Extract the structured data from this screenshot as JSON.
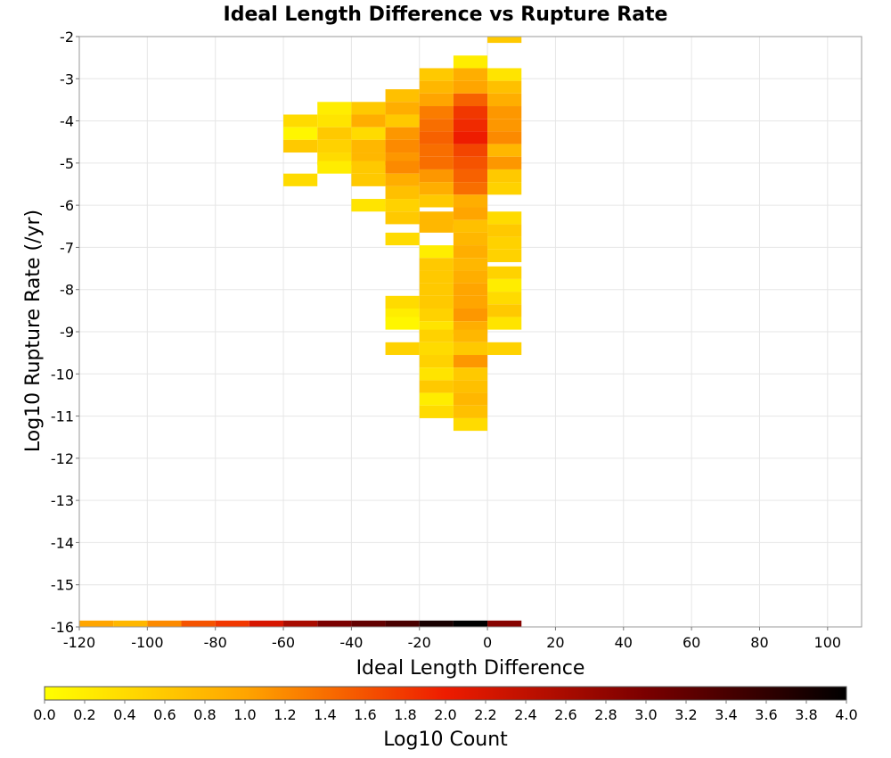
{
  "chart_data": {
    "type": "heatmap",
    "title": "Ideal Length Difference vs Rupture Rate",
    "xlabel": "Ideal Length Difference",
    "ylabel": "Log10 Rupture Rate (/yr)",
    "xlim": [
      -120,
      110
    ],
    "ylim": [
      -16,
      -2
    ],
    "xticks": [
      "-120",
      "-100",
      "-80",
      "-60",
      "-40",
      "-20",
      "0",
      "20",
      "40",
      "60",
      "80",
      "100"
    ],
    "yticks": [
      "-2",
      "-3",
      "-4",
      "-5",
      "-6",
      "-7",
      "-8",
      "-9",
      "-10",
      "-11",
      "-12",
      "-13",
      "-14",
      "-15",
      "-16"
    ],
    "x_bin_width": 10,
    "y_bin_height": 0.3,
    "grid": true,
    "colorbar": {
      "label": "Log10 Count",
      "min": 0.0,
      "max": 4.0,
      "ticks": [
        "0.0",
        "0.2",
        "0.4",
        "0.6",
        "0.8",
        "1.0",
        "1.2",
        "1.4",
        "1.6",
        "1.8",
        "2.0",
        "2.2",
        "2.4",
        "2.6",
        "2.8",
        "3.0",
        "3.2",
        "3.4",
        "3.6",
        "3.8",
        "4.0"
      ]
    },
    "cells": [
      {
        "x": 5,
        "y": -2.0,
        "v": 0.6
      },
      {
        "x": -5,
        "y": -2.6,
        "v": 0.2
      },
      {
        "x": -15,
        "y": -2.9,
        "v": 0.6
      },
      {
        "x": -5,
        "y": -2.9,
        "v": 0.9
      },
      {
        "x": 5,
        "y": -2.9,
        "v": 0.3
      },
      {
        "x": -25,
        "y": -3.4,
        "v": 0.7
      },
      {
        "x": -15,
        "y": -3.2,
        "v": 0.8
      },
      {
        "x": -5,
        "y": -3.2,
        "v": 1.0
      },
      {
        "x": 5,
        "y": -3.2,
        "v": 0.7
      },
      {
        "x": -45,
        "y": -3.7,
        "v": 0.2
      },
      {
        "x": -35,
        "y": -3.7,
        "v": 0.6
      },
      {
        "x": -25,
        "y": -3.7,
        "v": 0.9
      },
      {
        "x": -15,
        "y": -3.5,
        "v": 1.0
      },
      {
        "x": -5,
        "y": -3.5,
        "v": 1.5
      },
      {
        "x": 5,
        "y": -3.5,
        "v": 0.9
      },
      {
        "x": -55,
        "y": -4.0,
        "v": 0.4
      },
      {
        "x": -45,
        "y": -4.0,
        "v": 0.3
      },
      {
        "x": -35,
        "y": -4.0,
        "v": 0.9
      },
      {
        "x": -25,
        "y": -4.0,
        "v": 0.6
      },
      {
        "x": -15,
        "y": -3.8,
        "v": 1.3
      },
      {
        "x": -5,
        "y": -3.8,
        "v": 1.8
      },
      {
        "x": 5,
        "y": -3.8,
        "v": 1.1
      },
      {
        "x": -55,
        "y": -4.3,
        "v": 0.1
      },
      {
        "x": -45,
        "y": -4.3,
        "v": 0.6
      },
      {
        "x": -35,
        "y": -4.3,
        "v": 0.4
      },
      {
        "x": -25,
        "y": -4.3,
        "v": 1.1
      },
      {
        "x": -15,
        "y": -4.1,
        "v": 1.4
      },
      {
        "x": -5,
        "y": -4.1,
        "v": 1.9
      },
      {
        "x": 5,
        "y": -4.1,
        "v": 1.1
      },
      {
        "x": -55,
        "y": -4.6,
        "v": 0.6
      },
      {
        "x": -45,
        "y": -4.6,
        "v": 0.5
      },
      {
        "x": -35,
        "y": -4.6,
        "v": 0.8
      },
      {
        "x": -25,
        "y": -4.6,
        "v": 1.2
      },
      {
        "x": -15,
        "y": -4.4,
        "v": 1.5
      },
      {
        "x": -5,
        "y": -4.4,
        "v": 2.0
      },
      {
        "x": 5,
        "y": -4.4,
        "v": 1.2
      },
      {
        "x": -45,
        "y": -4.9,
        "v": 0.4
      },
      {
        "x": -35,
        "y": -4.9,
        "v": 0.8
      },
      {
        "x": -25,
        "y": -4.9,
        "v": 1.1
      },
      {
        "x": -15,
        "y": -4.7,
        "v": 1.4
      },
      {
        "x": -5,
        "y": -4.7,
        "v": 1.7
      },
      {
        "x": 5,
        "y": -4.7,
        "v": 0.8
      },
      {
        "x": -45,
        "y": -5.1,
        "v": 0.2
      },
      {
        "x": -35,
        "y": -5.1,
        "v": 0.6
      },
      {
        "x": -25,
        "y": -5.1,
        "v": 1.2
      },
      {
        "x": -15,
        "y": -5.0,
        "v": 1.4
      },
      {
        "x": -5,
        "y": -5.0,
        "v": 1.6
      },
      {
        "x": 5,
        "y": -5.0,
        "v": 1.1
      },
      {
        "x": -55,
        "y": -5.4,
        "v": 0.4
      },
      {
        "x": -35,
        "y": -5.4,
        "v": 0.6
      },
      {
        "x": -25,
        "y": -5.4,
        "v": 0.9
      },
      {
        "x": -15,
        "y": -5.3,
        "v": 1.1
      },
      {
        "x": -5,
        "y": -5.3,
        "v": 1.5
      },
      {
        "x": 5,
        "y": -5.3,
        "v": 0.6
      },
      {
        "x": -25,
        "y": -5.7,
        "v": 0.7
      },
      {
        "x": -15,
        "y": -5.6,
        "v": 0.9
      },
      {
        "x": -5,
        "y": -5.6,
        "v": 1.4
      },
      {
        "x": 5,
        "y": -5.6,
        "v": 0.5
      },
      {
        "x": -35,
        "y": -6.0,
        "v": 0.3
      },
      {
        "x": -25,
        "y": -6.0,
        "v": 0.5
      },
      {
        "x": -15,
        "y": -5.9,
        "v": 0.6
      },
      {
        "x": -5,
        "y": -5.9,
        "v": 0.9
      },
      {
        "x": 5,
        "y": -6.3,
        "v": 0.4
      },
      {
        "x": -25,
        "y": -6.3,
        "v": 0.6
      },
      {
        "x": -15,
        "y": -6.3,
        "v": 0.8
      },
      {
        "x": -5,
        "y": -6.2,
        "v": 1.0
      },
      {
        "x": -15,
        "y": -6.5,
        "v": 0.8
      },
      {
        "x": -5,
        "y": -6.5,
        "v": 0.7
      },
      {
        "x": 5,
        "y": -6.6,
        "v": 0.6
      },
      {
        "x": -25,
        "y": -6.8,
        "v": 0.4
      },
      {
        "x": -5,
        "y": -6.8,
        "v": 0.8
      },
      {
        "x": -15,
        "y": -7.1,
        "v": 0.2
      },
      {
        "x": -5,
        "y": -7.1,
        "v": 0.9
      },
      {
        "x": 5,
        "y": -6.9,
        "v": 0.5
      },
      {
        "x": 5,
        "y": -7.2,
        "v": 0.5
      },
      {
        "x": -15,
        "y": -7.4,
        "v": 0.6
      },
      {
        "x": -5,
        "y": -7.4,
        "v": 0.8
      },
      {
        "x": 5,
        "y": -7.6,
        "v": 0.5
      },
      {
        "x": -15,
        "y": -7.7,
        "v": 0.6
      },
      {
        "x": -5,
        "y": -7.7,
        "v": 0.9
      },
      {
        "x": -15,
        "y": -8.0,
        "v": 0.6
      },
      {
        "x": -5,
        "y": -8.0,
        "v": 1.0
      },
      {
        "x": 5,
        "y": -7.9,
        "v": 0.2
      },
      {
        "x": 5,
        "y": -8.2,
        "v": 0.4
      },
      {
        "x": -25,
        "y": -8.3,
        "v": 0.4
      },
      {
        "x": -15,
        "y": -8.3,
        "v": 0.6
      },
      {
        "x": -5,
        "y": -8.3,
        "v": 1.0
      },
      {
        "x": -25,
        "y": -8.6,
        "v": 0.2
      },
      {
        "x": -15,
        "y": -8.6,
        "v": 0.5
      },
      {
        "x": -5,
        "y": -8.6,
        "v": 1.1
      },
      {
        "x": 5,
        "y": -8.5,
        "v": 0.6
      },
      {
        "x": -25,
        "y": -8.8,
        "v": 0.1
      },
      {
        "x": -15,
        "y": -8.9,
        "v": 0.3
      },
      {
        "x": -5,
        "y": -8.9,
        "v": 0.9
      },
      {
        "x": 5,
        "y": -8.8,
        "v": 0.3
      },
      {
        "x": -15,
        "y": -9.1,
        "v": 0.5
      },
      {
        "x": -5,
        "y": -9.1,
        "v": 0.8
      },
      {
        "x": -25,
        "y": -9.4,
        "v": 0.5
      },
      {
        "x": -15,
        "y": -9.4,
        "v": 0.4
      },
      {
        "x": -5,
        "y": -9.4,
        "v": 0.6
      },
      {
        "x": 5,
        "y": -9.4,
        "v": 0.5
      },
      {
        "x": -15,
        "y": -9.7,
        "v": 0.5
      },
      {
        "x": -5,
        "y": -9.7,
        "v": 1.1
      },
      {
        "x": -15,
        "y": -10.0,
        "v": 0.3
      },
      {
        "x": -5,
        "y": -10.0,
        "v": 0.6
      },
      {
        "x": -15,
        "y": -10.3,
        "v": 0.6
      },
      {
        "x": -5,
        "y": -10.3,
        "v": 0.7
      },
      {
        "x": -15,
        "y": -10.6,
        "v": 0.2
      },
      {
        "x": -5,
        "y": -10.6,
        "v": 0.8
      },
      {
        "x": -15,
        "y": -10.9,
        "v": 0.4
      },
      {
        "x": -5,
        "y": -10.9,
        "v": 0.7
      },
      {
        "x": -5,
        "y": -11.2,
        "v": 0.4
      },
      {
        "x": -115,
        "y": -16.0,
        "v": 1.0
      },
      {
        "x": -105,
        "y": -16.0,
        "v": 0.8
      },
      {
        "x": -95,
        "y": -16.0,
        "v": 1.2
      },
      {
        "x": -85,
        "y": -16.0,
        "v": 1.6
      },
      {
        "x": -75,
        "y": -16.0,
        "v": 1.8
      },
      {
        "x": -65,
        "y": -16.0,
        "v": 2.2
      },
      {
        "x": -55,
        "y": -16.0,
        "v": 2.6
      },
      {
        "x": -45,
        "y": -16.0,
        "v": 3.0
      },
      {
        "x": -35,
        "y": -16.0,
        "v": 3.2
      },
      {
        "x": -25,
        "y": -16.0,
        "v": 3.4
      },
      {
        "x": -15,
        "y": -16.0,
        "v": 3.8
      },
      {
        "x": -5,
        "y": -16.0,
        "v": 4.0
      },
      {
        "x": 5,
        "y": -16.0,
        "v": 2.9
      }
    ]
  }
}
